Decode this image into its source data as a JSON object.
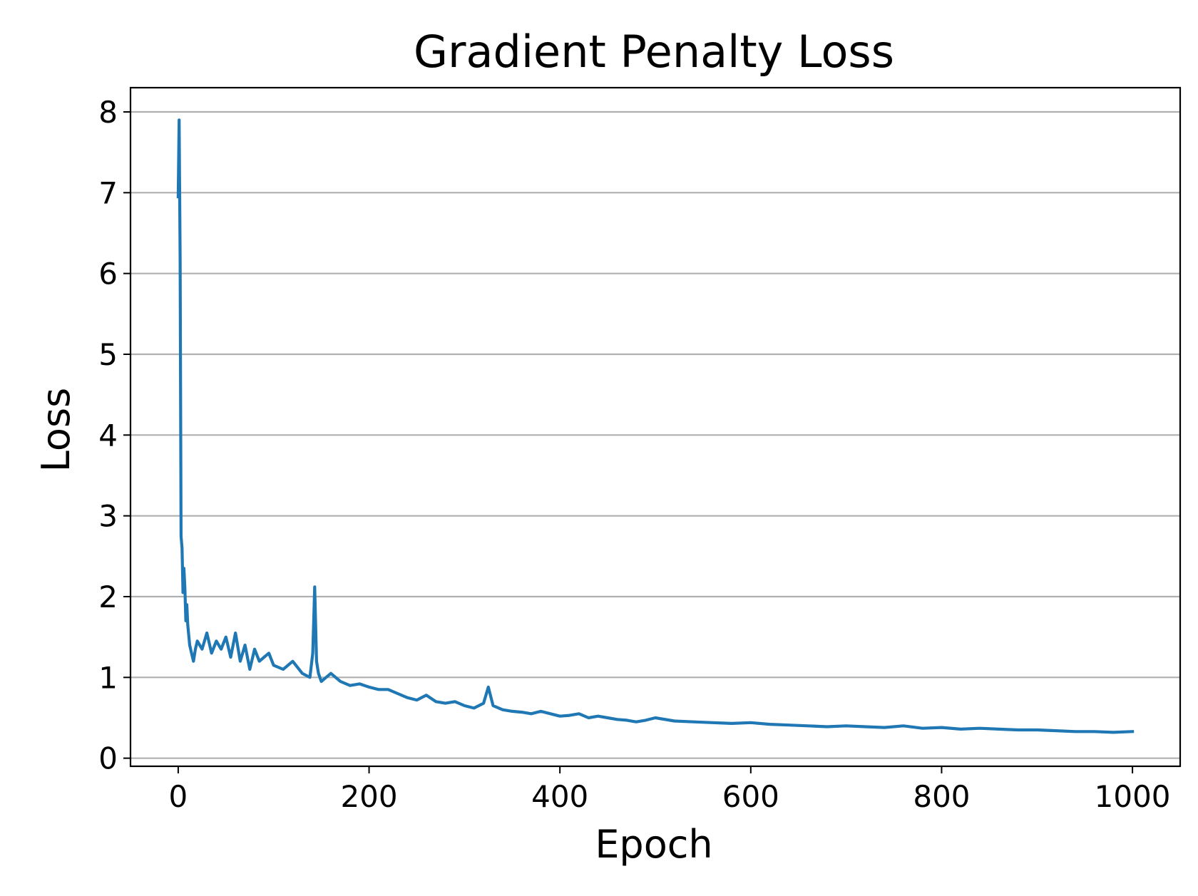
{
  "chart_data": {
    "type": "line",
    "title": "Gradient Penalty Loss",
    "xlabel": "Epoch",
    "ylabel": "Loss",
    "xlim": [
      -50,
      1050
    ],
    "ylim": [
      -0.1,
      8.3
    ],
    "xticks": [
      0,
      200,
      400,
      600,
      800,
      1000
    ],
    "yticks": [
      0,
      1,
      2,
      3,
      4,
      5,
      6,
      7,
      8
    ],
    "grid": "y-axis",
    "legend": "none",
    "colors": {
      "series": "#1f77b4",
      "grid": "#b0b0b0",
      "axes": "#000000"
    },
    "series": [
      {
        "x": [
          0,
          1,
          2,
          3,
          4,
          5,
          6,
          7,
          8,
          9,
          10,
          12,
          14,
          16,
          18,
          20,
          25,
          30,
          35,
          40,
          45,
          50,
          55,
          60,
          65,
          70,
          75,
          80,
          85,
          90,
          95,
          100,
          110,
          120,
          130,
          138,
          141,
          143,
          145,
          147,
          150,
          155,
          160,
          170,
          180,
          190,
          200,
          210,
          220,
          230,
          240,
          250,
          260,
          270,
          280,
          290,
          300,
          310,
          320,
          325,
          330,
          340,
          350,
          360,
          370,
          380,
          390,
          400,
          410,
          420,
          430,
          440,
          450,
          460,
          470,
          480,
          490,
          500,
          520,
          540,
          560,
          580,
          600,
          620,
          640,
          660,
          680,
          700,
          720,
          740,
          760,
          780,
          800,
          820,
          840,
          860,
          880,
          900,
          920,
          940,
          960,
          980,
          1000
        ],
        "y": [
          6.95,
          7.9,
          6.2,
          2.75,
          2.6,
          2.05,
          2.35,
          2.1,
          1.7,
          1.9,
          1.65,
          1.4,
          1.3,
          1.2,
          1.35,
          1.45,
          1.35,
          1.55,
          1.3,
          1.45,
          1.35,
          1.5,
          1.25,
          1.55,
          1.2,
          1.4,
          1.1,
          1.35,
          1.2,
          1.25,
          1.3,
          1.15,
          1.1,
          1.2,
          1.05,
          1.0,
          1.3,
          2.12,
          1.2,
          1.05,
          0.95,
          1.0,
          1.05,
          0.95,
          0.9,
          0.92,
          0.88,
          0.85,
          0.85,
          0.8,
          0.75,
          0.72,
          0.78,
          0.7,
          0.68,
          0.7,
          0.65,
          0.62,
          0.68,
          0.88,
          0.65,
          0.6,
          0.58,
          0.57,
          0.55,
          0.58,
          0.55,
          0.52,
          0.53,
          0.55,
          0.5,
          0.52,
          0.5,
          0.48,
          0.47,
          0.45,
          0.47,
          0.5,
          0.46,
          0.45,
          0.44,
          0.43,
          0.44,
          0.42,
          0.41,
          0.4,
          0.39,
          0.4,
          0.39,
          0.38,
          0.4,
          0.37,
          0.38,
          0.36,
          0.37,
          0.36,
          0.35,
          0.35,
          0.34,
          0.33,
          0.33,
          0.32,
          0.33
        ]
      }
    ]
  }
}
